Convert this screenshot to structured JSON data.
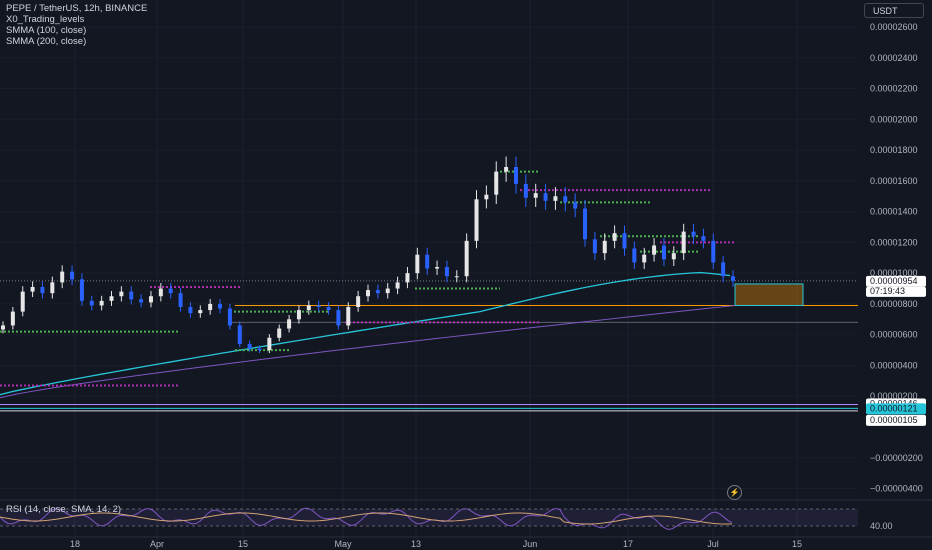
{
  "legend": {
    "symbol": "PEPE / TetherUS, 12h, BINANCE",
    "ind1": "X0_Trading_levels",
    "ind2": "SMMA (100, close)",
    "ind3": "SMMA (200, close)"
  },
  "currency_button": "USDT",
  "rsi_label": "RSI (14, close, SMA, 14, 2)",
  "rsi_value": "40.00",
  "bolt_icon": "⚡",
  "colors": {
    "bg": "#131722",
    "up": "#e6e6e6",
    "down": "#2962ff",
    "smma100": "#26c6da",
    "smma200": "#7e57c2",
    "level_green": "#4caf50",
    "level_magenta": "#b02cb0",
    "orange": "#ff9800"
  },
  "chart_data": {
    "type": "candlestick",
    "y_axis_ticks": [
      "0.00002600",
      "0.00002400",
      "0.00002200",
      "0.00002000",
      "0.00001800",
      "0.00001600",
      "0.00001400",
      "0.00001200",
      "0.00001000",
      "0.00000800",
      "0.00000600",
      "0.00000400",
      "0.00000200",
      "−0.00000200",
      "−0.00000400"
    ],
    "x_axis_ticks": [
      "18",
      "Apr",
      "15",
      "May",
      "13",
      "Jun",
      "17",
      "Jul",
      "15"
    ],
    "price_labels": {
      "current_price": "0.00000954",
      "countdown": "07:19:43",
      "smma200_value": "0.00000146",
      "smma100_value": "0.00000121",
      "level_value": "0.00000105"
    },
    "close_series": [
      6.6e-06,
      7.5e-06,
      8.8e-06,
      9.1e-06,
      8.7e-06,
      9.4e-06,
      1.01e-05,
      9.6e-06,
      8.2e-06,
      7.9e-06,
      8.2e-06,
      8.5e-06,
      8.8e-06,
      8.3e-06,
      8.1e-06,
      8.5e-06,
      9e-06,
      8.7e-06,
      7.8e-06,
      7.4e-06,
      7.6e-06,
      8e-06,
      7.7e-06,
      6.6e-06,
      5.4e-06,
      5.1e-06,
      5e-06,
      5.8e-06,
      6.4e-06,
      7e-06,
      7.6e-06,
      7.9e-06,
      7.8e-06,
      7.6e-06,
      6.6e-06,
      7.8e-06,
      8.5e-06,
      8.9e-06,
      8.7e-06,
      9e-06,
      9.4e-06,
      1e-05,
      1.12e-05,
      1.03e-05,
      1.04e-05,
      9.8e-06,
      9.8e-06,
      1.21e-05,
      1.48e-05,
      1.51e-05,
      1.66e-05,
      1.69e-05,
      1.58e-05,
      1.49e-05,
      1.52e-05,
      1.47e-05,
      1.5e-05,
      1.46e-05,
      1.42e-05,
      1.22e-05,
      1.13e-05,
      1.21e-05,
      1.26e-05,
      1.16e-05,
      1.07e-05,
      1.12e-05,
      1.18e-05,
      1.09e-05,
      1.13e-05,
      1.27e-05,
      1.24e-05,
      1.21e-05,
      1.07e-05,
      9.8e-06,
      9.5e-06
    ]
  }
}
